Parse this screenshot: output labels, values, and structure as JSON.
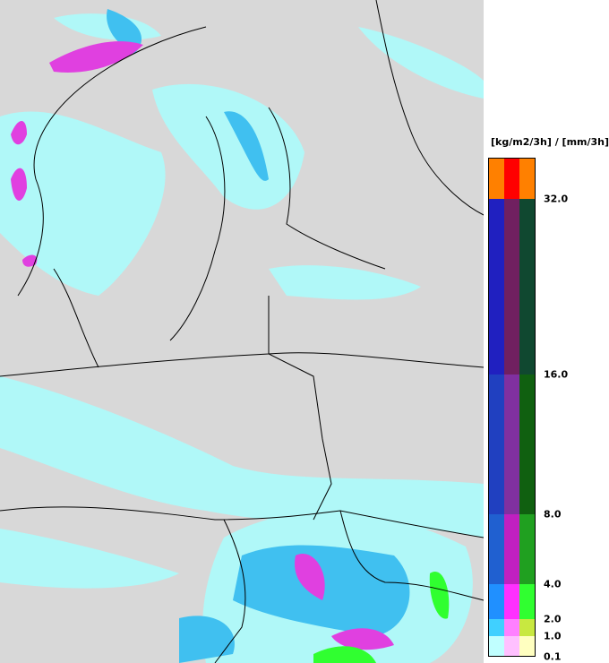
{
  "legend": {
    "title": "[kg/m2/3h] / [mm/3h]",
    "ticks": [
      "32.0",
      "16.0",
      "8.0",
      "4.0",
      "2.0",
      "1.0",
      "0.1"
    ],
    "bands": [
      [
        "#ff8000",
        "#ff0000",
        "#ff8000"
      ],
      [
        "#2020c0",
        "#702060",
        "#104830"
      ],
      [
        "#2040c0",
        "#8030a0",
        "#106010"
      ],
      [
        "#2060d0",
        "#c020c0",
        "#20a020"
      ],
      [
        "#2090ff",
        "#ff30ff",
        "#30ff30"
      ],
      [
        "#40d0ff",
        "#ff80ff",
        "#c8e840"
      ],
      [
        "#c0ffff",
        "#ffc0ff",
        "#ffffc0"
      ]
    ]
  }
}
